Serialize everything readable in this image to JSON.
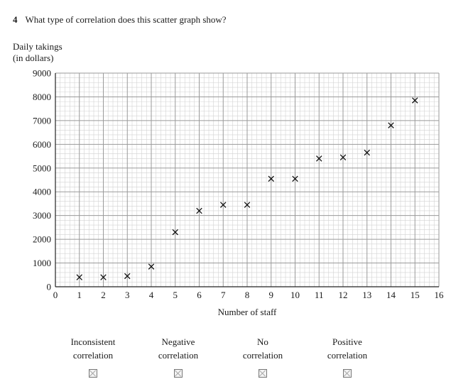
{
  "question": {
    "number": "4",
    "text": "What type of correlation does this scatter graph show?"
  },
  "options": [
    {
      "line1": "Inconsistent",
      "line2": "correlation"
    },
    {
      "line1": "Negative",
      "line2": "correlation"
    },
    {
      "line1": "No",
      "line2": "correlation"
    },
    {
      "line1": "Positive",
      "line2": "correlation"
    }
  ],
  "chart_data": {
    "type": "scatter",
    "title": "",
    "xlabel": "Number of staff",
    "ylabel_line1": "Daily takings",
    "ylabel_line2": "(in dollars)",
    "xlim": [
      0,
      16
    ],
    "ylim": [
      0,
      9000
    ],
    "xticks": [
      0,
      1,
      2,
      3,
      4,
      5,
      6,
      7,
      8,
      9,
      10,
      11,
      12,
      13,
      14,
      15,
      16
    ],
    "yticks": [
      0,
      1000,
      2000,
      3000,
      4000,
      5000,
      6000,
      7000,
      8000,
      9000
    ],
    "grid": true,
    "marker": "x",
    "points": [
      {
        "x": 1,
        "y": 400
      },
      {
        "x": 2,
        "y": 400
      },
      {
        "x": 3,
        "y": 450
      },
      {
        "x": 4,
        "y": 850
      },
      {
        "x": 5,
        "y": 2300
      },
      {
        "x": 6,
        "y": 3200
      },
      {
        "x": 7,
        "y": 3450
      },
      {
        "x": 8,
        "y": 3450
      },
      {
        "x": 9,
        "y": 4550
      },
      {
        "x": 10,
        "y": 4550
      },
      {
        "x": 11,
        "y": 5400
      },
      {
        "x": 12,
        "y": 5450
      },
      {
        "x": 13,
        "y": 5650
      },
      {
        "x": 14,
        "y": 6800
      },
      {
        "x": 15,
        "y": 7850
      }
    ]
  }
}
